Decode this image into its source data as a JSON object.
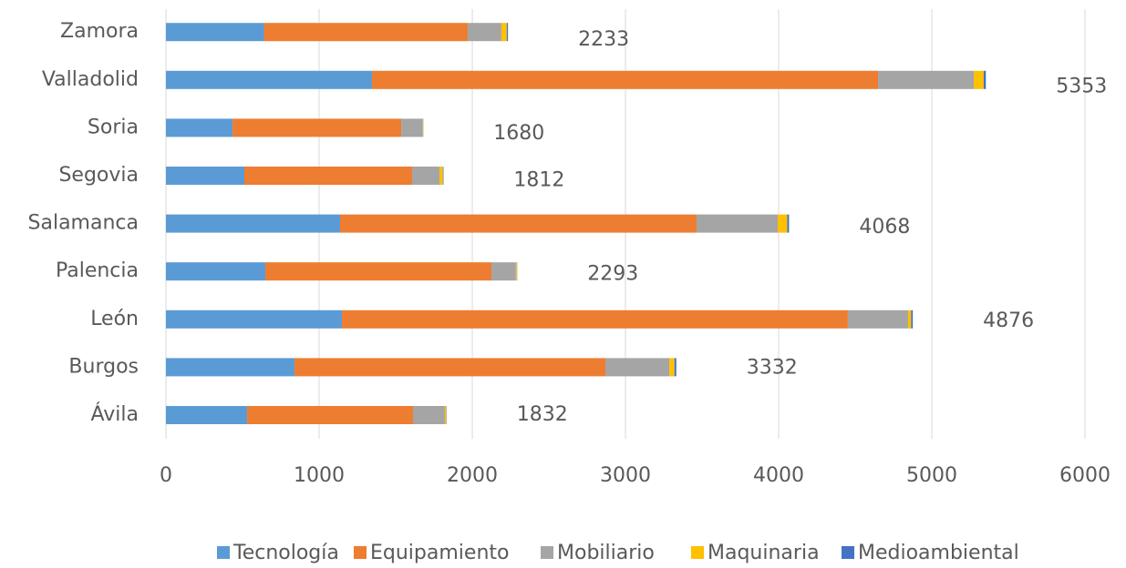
{
  "chart_data": {
    "type": "stacked_barh",
    "categories": [
      "Ávila",
      "Burgos",
      "León",
      "Palencia",
      "Salamanca",
      "Segovia",
      "Soria",
      "Valladolid",
      "Zamora"
    ],
    "series": [
      {
        "name": "Tecnología",
        "color": "#5b9bd5",
        "values": [
          530,
          839,
          1149,
          649,
          1137,
          512,
          435,
          1345,
          640
        ]
      },
      {
        "name": "Equipamiento",
        "color": "#ed7d31",
        "values": [
          1083,
          2030,
          3303,
          1476,
          2327,
          1095,
          1101,
          3304,
          1330
        ]
      },
      {
        "name": "Mobiliario",
        "color": "#a5a5a5",
        "values": [
          208,
          417,
          393,
          160,
          530,
          179,
          137,
          625,
          220
        ]
      },
      {
        "name": "Maquinaria",
        "color": "#ffc000",
        "values": [
          9,
          34,
          20,
          6,
          62,
          22,
          4,
          65,
          35
        ]
      },
      {
        "name": "Medioambiental",
        "color": "#4472c4",
        "values": [
          2,
          12,
          11,
          2,
          12,
          4,
          3,
          14,
          8
        ]
      }
    ],
    "totals": [
      1832,
      3332,
      4876,
      2293,
      4068,
      1812,
      1680,
      5353,
      2233
    ],
    "xlim": [
      0,
      6000
    ],
    "xticks": [
      0,
      1000,
      2000,
      3000,
      4000,
      5000,
      6000
    ],
    "grid": true,
    "legend": "bottom"
  }
}
